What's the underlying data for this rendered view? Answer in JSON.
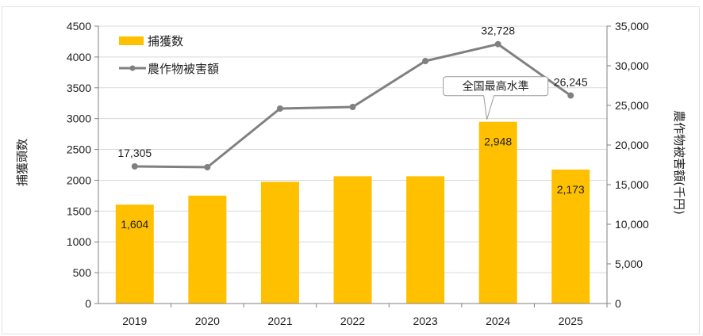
{
  "chart_data": {
    "type": "bar+line",
    "categories": [
      "2019",
      "2020",
      "2021",
      "2022",
      "2023",
      "2024",
      "2025"
    ],
    "series": [
      {
        "name": "捕獲数",
        "type": "bar",
        "axis": "left",
        "color": "#FFC000",
        "values": [
          1604,
          1750,
          1975,
          2065,
          2065,
          2948,
          2173
        ]
      },
      {
        "name": "農作物被害額",
        "type": "line",
        "axis": "right",
        "color": "#808080",
        "values": [
          17305,
          17200,
          24600,
          24800,
          30600,
          32728,
          26245
        ]
      }
    ],
    "bar_data_labels": {
      "0": "1,604",
      "5": "2,948",
      "6": "2,173"
    },
    "line_data_labels": {
      "0": "17,305",
      "5": "32,728",
      "6": "26,245"
    },
    "ylabel_left": "捕獲頭数",
    "ylabel_right": "農作物被害額(千円)",
    "ylim_left": [
      0,
      4500
    ],
    "ylim_right": [
      0,
      35000
    ],
    "yticks_left": [
      "0",
      "500",
      "1000",
      "1500",
      "2000",
      "2500",
      "3000",
      "3500",
      "4000",
      "4500"
    ],
    "yticks_right": [
      "0",
      "5,000",
      "10,000",
      "15,000",
      "20,000",
      "25,000",
      "30,000",
      "35,000"
    ],
    "annotation": {
      "text": "全国最高水準",
      "category_index": 5
    },
    "grid": true,
    "legend_position": "top-left"
  }
}
